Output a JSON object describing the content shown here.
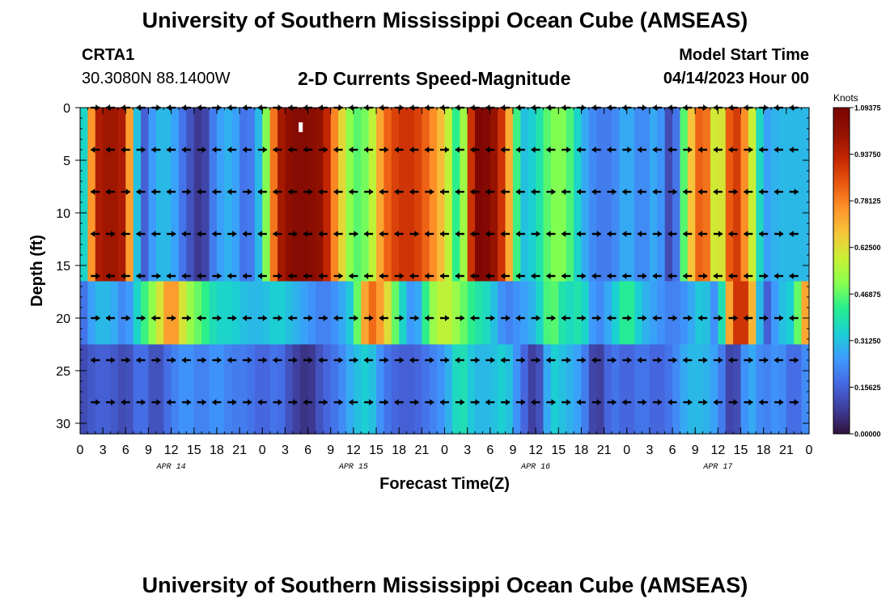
{
  "header": {
    "title": "University of Southern Mississippi Ocean Cube (AMSEAS)",
    "station": "CRTA1",
    "coords": "30.3080N  88.1400W",
    "subtitle": "2-D Currents Speed-Magnitude",
    "start_label": "Model Start Time",
    "start_time": "04/14/2023 Hour 00"
  },
  "footer": {
    "title": "University of Southern Mississippi Ocean Cube (AMSEAS)"
  },
  "colors": {
    "colormap": [
      "#30123b",
      "#3f3e9c",
      "#4669e3",
      "#3e9bfe",
      "#1bcfd4",
      "#27ee8f",
      "#88ff4f",
      "#c9ef34",
      "#f5c53a",
      "#fe922a",
      "#e9570f",
      "#c22502",
      "#921101",
      "#7a0403"
    ],
    "arrow": "#000000",
    "marker": "#ffffff"
  },
  "chart_data": {
    "type": "heatmap",
    "title": "2-D Currents Speed-Magnitude",
    "xlabel": "Forecast Time(Z)",
    "ylabel": "Depth (ft)",
    "x_hours": [
      0,
      96
    ],
    "x_ticks": [
      0,
      3,
      6,
      9,
      12,
      15,
      18,
      21,
      24,
      27,
      30,
      33,
      36,
      39,
      42,
      45,
      48,
      51,
      54,
      57,
      60,
      63,
      66,
      69,
      72,
      75,
      78,
      81,
      84,
      87,
      90,
      93,
      96
    ],
    "x_tick_labels": [
      "0",
      "3",
      "6",
      "9",
      "12",
      "15",
      "18",
      "21",
      "0",
      "3",
      "6",
      "9",
      "12",
      "15",
      "18",
      "21",
      "0",
      "3",
      "6",
      "9",
      "12",
      "15",
      "18",
      "21",
      "0",
      "3",
      "6",
      "9",
      "12",
      "15",
      "18",
      "21",
      "0"
    ],
    "day_labels": [
      {
        "hour": 12,
        "label": "APR 14"
      },
      {
        "hour": 36,
        "label": "APR 15"
      },
      {
        "hour": 60,
        "label": "APR 16"
      },
      {
        "hour": 84,
        "label": "APR 17"
      }
    ],
    "ylim": [
      0,
      31
    ],
    "y_ticks": [
      0,
      5,
      10,
      15,
      20,
      25,
      30
    ],
    "colorbar": {
      "title": "Knots",
      "range": [
        0.0,
        1.09375
      ],
      "tick_values": [
        1.09375,
        0.9375,
        0.78125,
        0.625,
        0.46875,
        0.3125,
        0.15625,
        0.0
      ],
      "tick_labels": [
        "1.09375",
        "0.93750",
        "0.78125",
        "0.62500",
        "0.46875",
        "0.31250",
        "0.15625",
        "0.00000"
      ]
    },
    "vector_depths": [
      0,
      4,
      8,
      12,
      16,
      20,
      24,
      28
    ],
    "vector_hours": [
      2,
      4,
      6,
      8,
      10,
      12,
      14,
      16,
      18,
      20,
      22,
      24,
      26,
      28,
      30,
      32,
      34,
      36,
      38,
      40,
      42,
      44,
      46,
      48,
      50,
      52,
      54,
      56,
      58,
      60,
      62,
      64,
      66,
      68,
      70,
      72,
      74,
      76,
      78,
      80,
      82,
      84,
      86,
      88,
      90,
      92,
      94
    ],
    "speed_layers": [
      {
        "depths": [
          0,
          16.5
        ],
        "values": [
          0.15,
          0.95,
          1.0,
          0.95,
          0.1,
          0.3,
          0.3,
          0.15,
          0.05,
          0.25,
          0.3,
          0.15,
          0.35,
          0.95,
          1.05,
          1.05,
          1.0,
          0.7,
          0.45,
          0.5,
          0.8,
          0.9,
          0.9,
          0.8,
          0.65,
          0.35,
          1.09,
          1.05,
          0.85,
          0.3,
          0.35,
          0.5,
          0.5,
          0.3,
          0.2,
          0.2,
          0.3,
          0.2,
          0.3,
          0.05,
          0.6,
          0.9,
          0.5,
          0.95,
          0.7,
          0.25,
          0.3,
          0.3,
          0.3
        ]
      },
      {
        "depths": [
          16.5,
          22.5
        ],
        "values": [
          0.15,
          0.3,
          0.3,
          0.2,
          0.4,
          0.55,
          0.8,
          0.55,
          0.45,
          0.35,
          0.35,
          0.3,
          0.3,
          0.35,
          0.3,
          0.25,
          0.2,
          0.25,
          0.35,
          0.85,
          0.7,
          0.4,
          0.2,
          0.5,
          0.6,
          0.5,
          0.4,
          0.35,
          0.2,
          0.25,
          0.3,
          0.5,
          0.35,
          0.4,
          0.2,
          0.3,
          0.45,
          0.3,
          0.25,
          0.2,
          0.25,
          0.35,
          0.2,
          0.9,
          0.9,
          0.1,
          0.3,
          0.35,
          0.85
        ]
      },
      {
        "depths": [
          22.5,
          31
        ],
        "values": [
          0.1,
          0.15,
          0.15,
          0.1,
          0.2,
          0.1,
          0.2,
          0.25,
          0.2,
          0.25,
          0.2,
          0.2,
          0.15,
          0.2,
          0.1,
          0.05,
          0.15,
          0.2,
          0.3,
          0.35,
          0.2,
          0.15,
          0.15,
          0.2,
          0.25,
          0.4,
          0.3,
          0.3,
          0.35,
          0.2,
          0.05,
          0.35,
          0.3,
          0.25,
          0.05,
          0.2,
          0.15,
          0.2,
          0.15,
          0.2,
          0.3,
          0.3,
          0.25,
          0.05,
          0.3,
          0.2,
          0.25,
          0.15,
          0.25
        ]
      }
    ]
  }
}
